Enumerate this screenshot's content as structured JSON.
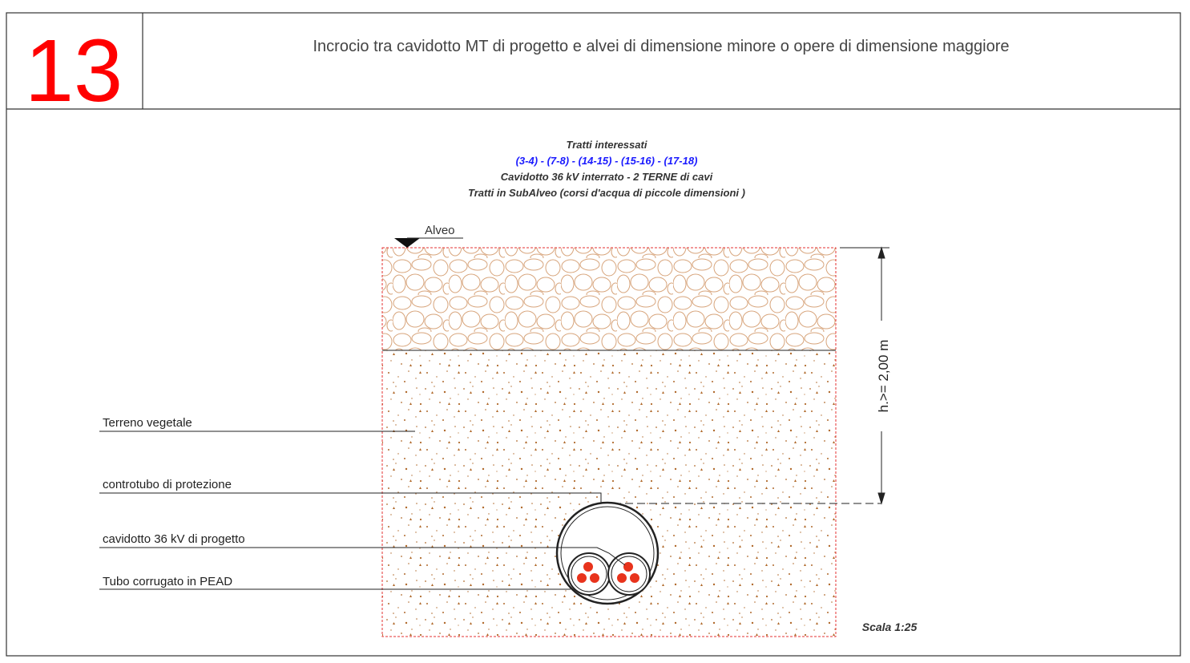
{
  "header": {
    "number": "13",
    "title": "Incrocio tra cavidotto MT di progetto e alvei di dimensione minore o opere di dimensione maggiore"
  },
  "notes": {
    "heading": "Tratti interessati",
    "segments": "(3-4) - (7-8) - (14-15) - (15-16) - (17-18)",
    "line1": "Cavidotto 36 kV interrato - 2 TERNE di cavi",
    "line2": "Tratti in SubAlveo (corsi d'acqua di piccole dimensioni )"
  },
  "surface_label": "Alveo",
  "callouts": [
    "Terreno vegetale",
    "controtubo di protezione",
    "cavidotto 36 kV di progetto",
    "Tubo corrugato in PEAD"
  ],
  "dimension": "h.>= 2,00 m",
  "scale": "Scala 1:25"
}
